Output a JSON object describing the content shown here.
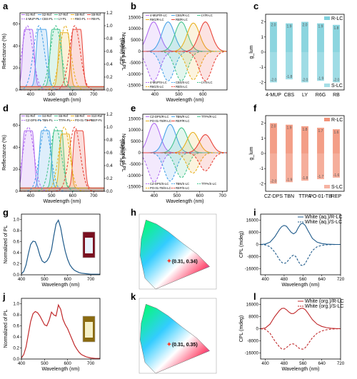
{
  "panels": {
    "a": {
      "letter": "a",
      "ylabel": "Reflectance (%)",
      "y2label": "Normalized of PL",
      "xlabel": "Wavelength (nm)",
      "xticks": [
        "400",
        "500",
        "600",
        "700"
      ],
      "yticks": [
        "0",
        "20",
        "40",
        "60"
      ],
      "y2ticks": [
        "0.0",
        "0.2",
        "0.4",
        "0.6",
        "0.8",
        "1.0",
        "1.2"
      ],
      "legend": [
        "S1-Ref",
        "S2-Ref",
        "S7-Ref",
        "S8-Ref",
        "S9-Ref",
        "4-MUP-PL",
        "CBS-PL",
        "LY-PL",
        "R6G-PL",
        "RB-PL"
      ]
    },
    "b": {
      "letter": "b",
      "ylabel": "CPL (mdeg)",
      "xlabel": "Wavelength (nm)",
      "xticks": [
        "400",
        "500",
        "600"
      ],
      "yticks": [
        "15000",
        "10000",
        "5000",
        "0",
        "-5000",
        "-10000",
        "-15000"
      ],
      "legend_top": [
        "4-MUP/R-LC",
        "CBS/R-LC",
        "LY/R-LC",
        "R6G/R-LC",
        "RB/R-LC"
      ],
      "legend_bottom": [
        "4-MUP/S-LC",
        "CBS/S-LC",
        "LY/S-LC",
        "R6G/S-LC",
        "RB/S-LC"
      ]
    },
    "c": {
      "letter": "c",
      "ylabel": "g_lum",
      "yticks": [
        "2",
        "1",
        "0",
        "-1",
        "-2"
      ],
      "legend": [
        "R-LC",
        "S-LC"
      ],
      "colors": {
        "bar": "#7fd0dc"
      }
    },
    "d": {
      "letter": "d",
      "ylabel": "Reflectance (%)",
      "y2label": "Normalized of PL",
      "xlabel": "Wavelength (nm)",
      "xticks": [
        "400",
        "500",
        "600",
        "700"
      ],
      "yticks": [
        "0",
        "20",
        "40",
        "60"
      ],
      "y2ticks": [
        "0.0",
        "0.2",
        "0.4",
        "0.6",
        "0.8",
        "1.0",
        "1.2"
      ],
      "legend": [
        "S1-Ref",
        "S4-Ref",
        "S6-Ref",
        "S8-Ref",
        "S10-Ref",
        "CZ-DPS-PL",
        "TBN-PL",
        "TTPA-PL",
        "PO-01-TB-PL",
        "REP-PL"
      ]
    },
    "e": {
      "letter": "e",
      "ylabel": "CPL (mdeg)",
      "xlabel": "Wavelength (nm)",
      "xticks": [
        "400",
        "500",
        "600",
        "700"
      ],
      "yticks": [
        "15000",
        "10000",
        "5000",
        "0",
        "-5000",
        "-10000",
        "-15000"
      ],
      "legend_top": [
        "CZ-DPS/R-LC",
        "TBN/R-LC",
        "TTPA/R-LC",
        "PO-01-TB/R-LC",
        "REP/R-LC"
      ],
      "legend_bottom": [
        "CZ-DPS/S-LC",
        "TBN/S-LC",
        "TTPA/S-LC",
        "PO-01-TB/S-LC",
        "REP/S-LC"
      ]
    },
    "f": {
      "letter": "f",
      "ylabel": "g_lum",
      "yticks": [
        "2",
        "1",
        "0",
        "-1",
        "-2"
      ],
      "legend": [
        "R-LC",
        "S-LC"
      ],
      "colors": {
        "bar": "#f2937a"
      }
    },
    "g": {
      "letter": "g",
      "ylabel": "Normalized of PL",
      "xlabel": "Wavelength (nm)",
      "xticks": [
        "400",
        "500",
        "600",
        "700"
      ],
      "yticks": [
        "0.0",
        "0.2",
        "0.4",
        "0.6",
        "0.8",
        "1.0"
      ]
    },
    "h": {
      "letter": "h",
      "coord": "(0.31, 0.34)"
    },
    "i": {
      "letter": "i",
      "ylabel": "CPL (mdeg)",
      "xlabel": "Wavelength (nm)",
      "xticks": [
        "400",
        "480",
        "560",
        "640",
        "720"
      ],
      "yticks": [
        "16000",
        "8000",
        "0",
        "-8000",
        "-16000"
      ],
      "legend": [
        "White (aq.)/R-LC",
        "White (aq.)/S-LC"
      ]
    },
    "j": {
      "letter": "j",
      "ylabel": "Normalized of PL",
      "xlabel": "Wavelength (nm)",
      "xticks": [
        "400",
        "500",
        "600",
        "700"
      ],
      "yticks": [
        "0.0",
        "0.2",
        "0.4",
        "0.6",
        "0.8",
        "1.0"
      ]
    },
    "k": {
      "letter": "k",
      "coord": "(0.31, 0.35)"
    },
    "l": {
      "letter": "l",
      "ylabel": "CPL (mdeg)",
      "xlabel": "Wavelength (nm)",
      "xticks": [
        "400",
        "480",
        "560",
        "640",
        "720"
      ],
      "yticks": [
        "16000",
        "8000",
        "0",
        "-8000",
        "-16000"
      ],
      "legend": [
        "White (org.)/R-LC",
        "White (org.)/S-LC"
      ]
    }
  },
  "chart_data": [
    {
      "panel": "a",
      "type": "line",
      "xlim": [
        350,
        750
      ],
      "ylim": [
        0,
        70
      ],
      "y2lim": [
        0,
        1.2
      ],
      "series": [
        {
          "name": "S1-Ref",
          "color": "#b06cf0",
          "peak_x": 390,
          "peak_y": 55
        },
        {
          "name": "S2-Ref",
          "color": "#4aa3e8",
          "peak_x": 455,
          "peak_y": 55
        },
        {
          "name": "S7-Ref",
          "color": "#46c58f",
          "peak_x": 520,
          "peak_y": 55
        },
        {
          "name": "S8-Ref",
          "color": "#e8b020",
          "peak_x": 560,
          "peak_y": 52
        },
        {
          "name": "S9-Ref",
          "color": "#e8453a",
          "peak_x": 620,
          "peak_y": 55
        },
        {
          "name": "4-MUP-PL",
          "color": "#b06cf0",
          "peak_x": 385,
          "peak_y": 1.0
        },
        {
          "name": "CBS-PL",
          "color": "#4aa3e8",
          "peak_x": 440,
          "peak_y": 1.0
        },
        {
          "name": "LY-PL",
          "color": "#46c58f",
          "peak_x": 520,
          "peak_y": 1.0
        },
        {
          "name": "R6G-PL",
          "color": "#e8b020",
          "peak_x": 565,
          "peak_y": 1.0
        },
        {
          "name": "RB-PL",
          "color": "#e8453a",
          "peak_x": 610,
          "peak_y": 1.0
        }
      ]
    },
    {
      "panel": "b",
      "type": "line",
      "xlim": [
        350,
        700
      ],
      "ylim": [
        -17000,
        17000
      ],
      "series": [
        {
          "name": "4-MUP/R-LC",
          "color": "#b06cf0",
          "peak_x": 395,
          "peak_y": 13000
        },
        {
          "name": "CBS/R-LC",
          "color": "#4aa3e8",
          "peak_x": 455,
          "peak_y": 13000
        },
        {
          "name": "LY/R-LC",
          "color": "#46c58f",
          "peak_x": 510,
          "peak_y": 13000
        },
        {
          "name": "R6G/R-LC",
          "color": "#e8b020",
          "peak_x": 560,
          "peak_y": 12500
        },
        {
          "name": "RB/R-LC",
          "color": "#e8453a",
          "peak_x": 610,
          "peak_y": 13000
        },
        {
          "name": "4-MUP/S-LC",
          "color": "#b06cf0",
          "peak_x": 395,
          "peak_y": -13000
        },
        {
          "name": "CBS/S-LC",
          "color": "#4aa3e8",
          "peak_x": 455,
          "peak_y": -13000
        },
        {
          "name": "LY/S-LC",
          "color": "#46c58f",
          "peak_x": 510,
          "peak_y": -13000
        },
        {
          "name": "R6G/S-LC",
          "color": "#e8b020",
          "peak_x": 560,
          "peak_y": -12500
        },
        {
          "name": "RB/S-LC",
          "color": "#e8453a",
          "peak_x": 610,
          "peak_y": -13000
        }
      ]
    },
    {
      "panel": "c",
      "type": "bar",
      "categories": [
        "4-MUP",
        "CBS",
        "LY",
        "R6G",
        "RB"
      ],
      "ylim": [
        -2.5,
        2.5
      ],
      "series": [
        {
          "name": "R-LC",
          "values": [
            2.0,
            1.9,
            2.0,
            1.9,
            1.8
          ]
        },
        {
          "name": "S-LC",
          "values": [
            -2.0,
            -1.8,
            -2.0,
            -1.9,
            -2.0
          ]
        }
      ],
      "labels_top": [
        "2.0",
        "1.9",
        "2.0",
        "1.9",
        "1.8"
      ],
      "labels_bottom": [
        "-2.0",
        "-1.8",
        "-2.0",
        "-1.9",
        "-2.0"
      ]
    },
    {
      "panel": "d",
      "type": "line",
      "xlim": [
        350,
        750
      ],
      "ylim": [
        0,
        70
      ],
      "y2lim": [
        0,
        1.2
      ],
      "series": [
        {
          "name": "S1-Ref",
          "color": "#b06cf0",
          "peak_x": 390,
          "peak_y": 55
        },
        {
          "name": "S4-Ref",
          "color": "#4aa3e8",
          "peak_x": 470,
          "peak_y": 55
        },
        {
          "name": "S6-Ref",
          "color": "#46c58f",
          "peak_x": 530,
          "peak_y": 55
        },
        {
          "name": "S8-Ref",
          "color": "#e8b020",
          "peak_x": 565,
          "peak_y": 52
        },
        {
          "name": "S10-Ref",
          "color": "#e8453a",
          "peak_x": 630,
          "peak_y": 55
        },
        {
          "name": "CZ-DPS-PL",
          "color": "#b06cf0",
          "peak_x": 390,
          "peak_y": 1.0
        },
        {
          "name": "TBN-PL",
          "color": "#4aa3e8",
          "peak_x": 470,
          "peak_y": 1.0
        },
        {
          "name": "TTPA-PL",
          "color": "#46c58f",
          "peak_x": 520,
          "peak_y": 1.0
        },
        {
          "name": "PO-01-TB-PL",
          "color": "#e8b020",
          "peak_x": 560,
          "peak_y": 1.0
        },
        {
          "name": "REP-PL",
          "color": "#e8453a",
          "peak_x": 610,
          "peak_y": 1.0
        }
      ]
    },
    {
      "panel": "e",
      "type": "line",
      "xlim": [
        350,
        720
      ],
      "ylim": [
        -17000,
        17000
      ],
      "series": [
        {
          "name": "CZ-DPS/R-LC",
          "color": "#b06cf0",
          "peak_x": 400,
          "peak_y": 13000
        },
        {
          "name": "TBN/R-LC",
          "color": "#4aa3e8",
          "peak_x": 470,
          "peak_y": 12500
        },
        {
          "name": "TTPA/R-LC",
          "color": "#46c58f",
          "peak_x": 520,
          "peak_y": 11000
        },
        {
          "name": "PO-01-TB/R-LC",
          "color": "#e8b020",
          "peak_x": 570,
          "peak_y": 9000
        },
        {
          "name": "REP/R-LC",
          "color": "#e8453a",
          "peak_x": 625,
          "peak_y": 8000
        },
        {
          "name": "CZ-DPS/S-LC",
          "color": "#b06cf0",
          "peak_x": 400,
          "peak_y": -13000
        },
        {
          "name": "TBN/S-LC",
          "color": "#4aa3e8",
          "peak_x": 470,
          "peak_y": -12500
        },
        {
          "name": "TTPA/S-LC",
          "color": "#46c58f",
          "peak_x": 520,
          "peak_y": -11000
        },
        {
          "name": "PO-01-TB/S-LC",
          "color": "#e8b020",
          "peak_x": 570,
          "peak_y": -9000
        },
        {
          "name": "REP/S-LC",
          "color": "#e8453a",
          "peak_x": 625,
          "peak_y": -8000
        }
      ]
    },
    {
      "panel": "f",
      "type": "bar",
      "categories": [
        "CZ-DPS",
        "TBN",
        "TTPA",
        "PO-01-TB",
        "REP"
      ],
      "ylim": [
        -2.5,
        2.5
      ],
      "series": [
        {
          "name": "R-LC",
          "values": [
            2.0,
            1.9,
            1.8,
            1.7,
            1.6
          ]
        },
        {
          "name": "S-LC",
          "values": [
            -2.0,
            -1.9,
            -1.8,
            -1.7,
            -1.6
          ]
        }
      ],
      "labels_top": [
        "2.0",
        "1.9",
        "1.8",
        "1.7",
        "1.6"
      ],
      "labels_bottom": [
        "-2.0",
        "-1.9",
        "-1.8",
        "-1.7",
        "-1.6"
      ]
    },
    {
      "panel": "g",
      "type": "line",
      "xlim": [
        400,
        740
      ],
      "ylim": [
        0,
        1.1
      ],
      "x": [
        400,
        410,
        420,
        430,
        440,
        450,
        460,
        470,
        480,
        490,
        500,
        510,
        520,
        530,
        540,
        550,
        560,
        570,
        580,
        590,
        600,
        610,
        620,
        630,
        640,
        650,
        660,
        680,
        700,
        720,
        740
      ],
      "series": [
        {
          "name": "",
          "color": "#1e5a8a",
          "values": [
            0.02,
            0.06,
            0.18,
            0.38,
            0.55,
            0.61,
            0.6,
            0.5,
            0.35,
            0.25,
            0.22,
            0.25,
            0.32,
            0.45,
            0.7,
            0.92,
            0.99,
            0.85,
            0.62,
            0.42,
            0.28,
            0.18,
            0.12,
            0.08,
            0.06,
            0.04,
            0.03,
            0.02,
            0.01,
            0.01,
            0.01
          ]
        }
      ]
    },
    {
      "panel": "i",
      "type": "line",
      "xlim": [
        380,
        720
      ],
      "ylim": [
        -20000,
        20000
      ],
      "x": [
        380,
        400,
        420,
        440,
        460,
        470,
        480,
        490,
        500,
        510,
        520,
        530,
        540,
        550,
        560,
        570,
        580,
        600,
        620,
        640,
        660,
        680,
        700,
        720
      ],
      "series": [
        {
          "name": "White (aq.)/R-LC",
          "color": "#1e5a8a",
          "values": [
            0,
            300,
            1500,
            5000,
            10000,
            11800,
            12500,
            12000,
            10000,
            8000,
            7000,
            8000,
            11000,
            13500,
            14000,
            12500,
            9500,
            4000,
            1500,
            600,
            200,
            100,
            0,
            0
          ]
        },
        {
          "name": "White (aq.)/S-LC",
          "color": "#1e5a8a",
          "values": [
            0,
            -300,
            -1500,
            -5000,
            -10000,
            -11800,
            -12500,
            -12000,
            -10000,
            -8000,
            -7000,
            -8000,
            -11000,
            -13500,
            -14000,
            -12500,
            -9500,
            -4000,
            -1500,
            -600,
            -200,
            -100,
            0,
            0
          ]
        }
      ]
    },
    {
      "panel": "j",
      "type": "line",
      "xlim": [
        400,
        740
      ],
      "ylim": [
        0,
        1.1
      ],
      "x": [
        400,
        410,
        420,
        430,
        440,
        450,
        460,
        470,
        480,
        490,
        500,
        510,
        520,
        530,
        540,
        550,
        560,
        570,
        580,
        590,
        600,
        610,
        620,
        630,
        640,
        650,
        660,
        680,
        700,
        720,
        740
      ],
      "series": [
        {
          "name": "",
          "color": "#c0282a",
          "values": [
            0.02,
            0.08,
            0.22,
            0.45,
            0.68,
            0.82,
            0.86,
            0.84,
            0.78,
            0.7,
            0.62,
            0.6,
            0.7,
            0.85,
            0.8,
            0.78,
            0.98,
            0.9,
            0.72,
            0.62,
            0.55,
            0.45,
            0.35,
            0.25,
            0.18,
            0.12,
            0.08,
            0.04,
            0.02,
            0.01,
            0.01
          ]
        }
      ]
    },
    {
      "panel": "l",
      "type": "line",
      "xlim": [
        380,
        720
      ],
      "ylim": [
        -20000,
        20000
      ],
      "x": [
        380,
        400,
        420,
        440,
        460,
        470,
        480,
        490,
        500,
        510,
        520,
        530,
        540,
        550,
        560,
        570,
        580,
        600,
        620,
        640,
        660,
        680,
        700,
        720
      ],
      "series": [
        {
          "name": "White (org.)/R-LC",
          "color": "#c0282a",
          "values": [
            0,
            400,
            3000,
            8000,
            12000,
            13300,
            13500,
            12500,
            11000,
            10000,
            10000,
            11000,
            12500,
            13300,
            13500,
            12500,
            10500,
            6000,
            3000,
            1500,
            700,
            300,
            100,
            0
          ]
        },
        {
          "name": "White (org.)/S-LC",
          "color": "#c0282a",
          "values": [
            0,
            -400,
            -3000,
            -8000,
            -12000,
            -13300,
            -13500,
            -12500,
            -11000,
            -10000,
            -10000,
            -11000,
            -12500,
            -13300,
            -13500,
            -12500,
            -10500,
            -6000,
            -3000,
            -1500,
            -700,
            -300,
            -100,
            0
          ]
        }
      ]
    }
  ]
}
